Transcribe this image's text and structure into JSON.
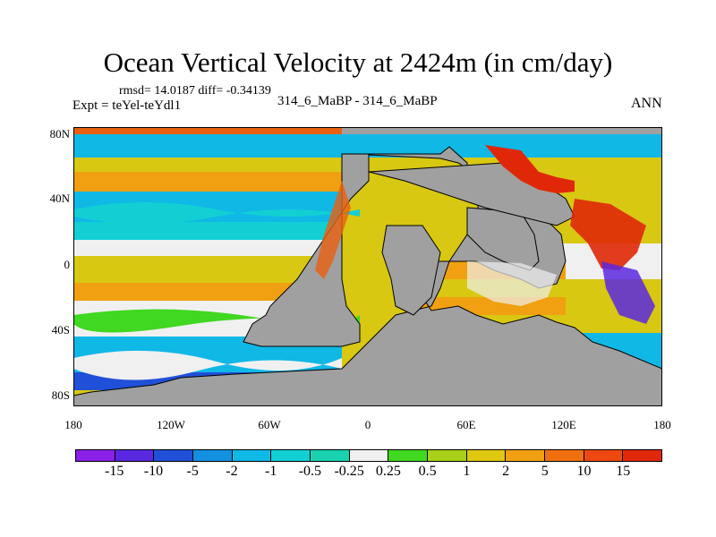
{
  "title": "Ocean Vertical Velocity at 2424m (in cm/day)",
  "stats": "rmsd= 14.0187 diff= -0.34139",
  "expt": "Expt = teYel-teYdl1",
  "exptname": "314_6_MaBP - 314_6_MaBP",
  "season": "ANN",
  "lat_labels": [
    "80N",
    "40N",
    "0",
    "40S",
    "80S"
  ],
  "lon_labels": [
    "180",
    "120W",
    "60W",
    "0",
    "60E",
    "120E",
    "180"
  ],
  "colorbar": {
    "labels": [
      "-15",
      "-10",
      "-5",
      "-2",
      "-1",
      "-0.5",
      "-0.25",
      "0.25",
      "0.5",
      "1",
      "2",
      "5",
      "10",
      "15"
    ],
    "colors": [
      "#8a20e8",
      "#5a28e0",
      "#2050d8",
      "#1490e0",
      "#10b8e6",
      "#12cfd4",
      "#18d2b0",
      "#f0f0f0",
      "#40d820",
      "#a8d018",
      "#e0c810",
      "#f0a010",
      "#f07010",
      "#ec4810",
      "#e02808"
    ]
  }
}
